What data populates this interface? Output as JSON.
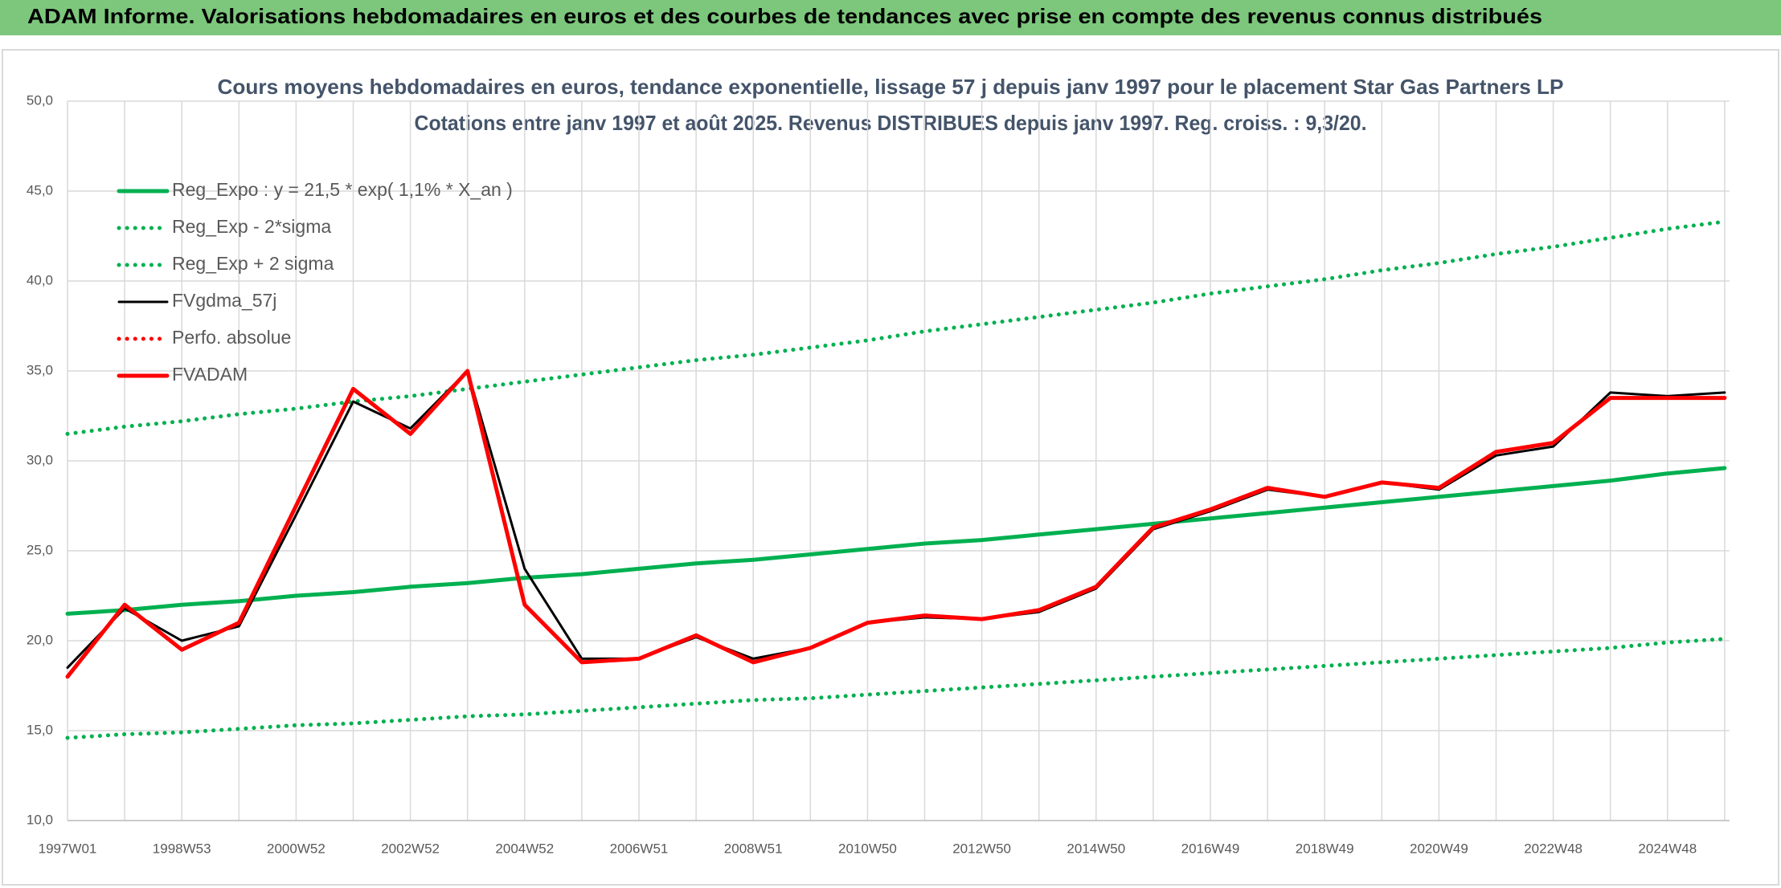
{
  "header": {
    "title": "ADAM Informe. Valorisations hebdomadaires en euros et des courbes de tendances avec prise en compte des revenus connus distribués"
  },
  "chart_data": {
    "type": "line",
    "title": "Cours moyens hebdomadaires en euros, tendance exponentielle, lissage 57 j depuis janv 1997 pour le placement Star Gas Partners LP",
    "subtitle": "Cotations entre janv 1997 et août 2025. Revenus DISTRIBUES depuis janv 1997. Reg. croiss. : 9,3/20.",
    "categories": [
      "1997W01",
      null,
      "1998W53",
      null,
      "2000W52",
      null,
      "2002W52",
      null,
      "2004W52",
      null,
      "2006W51",
      null,
      "2008W51",
      null,
      "2010W50",
      null,
      "2012W50",
      null,
      "2014W50",
      null,
      "2016W49",
      null,
      "2018W49",
      null,
      "2020W49",
      null,
      "2022W48",
      null,
      "2024W48",
      null
    ],
    "ylim": [
      10,
      50
    ],
    "yticks": [
      {
        "value": 10,
        "label": "10,0"
      },
      {
        "value": 15,
        "label": "15,0"
      },
      {
        "value": 20,
        "label": "20,0"
      },
      {
        "value": 25,
        "label": "25,0"
      },
      {
        "value": 30,
        "label": "30,0"
      },
      {
        "value": 35,
        "label": "35,0"
      },
      {
        "value": 40,
        "label": "40,0"
      },
      {
        "value": 45,
        "label": "45,0"
      },
      {
        "value": 50,
        "label": "50,0"
      }
    ],
    "grid": true,
    "legend": "upper left",
    "series": [
      {
        "name": "Reg_Expo : y = 21,5 * exp( 1,1% *  X_an )",
        "color": "#00b050",
        "linestyle": "solid",
        "values": [
          21.5,
          21.7,
          22.0,
          22.2,
          22.5,
          22.7,
          23.0,
          23.2,
          23.5,
          23.7,
          24.0,
          24.3,
          24.5,
          24.8,
          25.1,
          25.4,
          25.6,
          25.9,
          26.2,
          26.5,
          26.8,
          27.1,
          27.4,
          27.7,
          28.0,
          28.3,
          28.6,
          28.9,
          29.3,
          29.6
        ]
      },
      {
        "name": "Reg_Exp - 2*sigma",
        "color": "#00b050",
        "linestyle": "dotted",
        "values": [
          14.6,
          14.8,
          14.9,
          15.1,
          15.3,
          15.4,
          15.6,
          15.8,
          15.9,
          16.1,
          16.3,
          16.5,
          16.7,
          16.8,
          17.0,
          17.2,
          17.4,
          17.6,
          17.8,
          18.0,
          18.2,
          18.4,
          18.6,
          18.8,
          19.0,
          19.2,
          19.4,
          19.6,
          19.9,
          20.1
        ]
      },
      {
        "name": "Reg_Exp + 2 sigma",
        "color": "#00b050",
        "linestyle": "dotted",
        "values": [
          31.5,
          31.9,
          32.2,
          32.6,
          32.9,
          33.3,
          33.6,
          34.0,
          34.4,
          34.8,
          35.2,
          35.6,
          35.9,
          36.3,
          36.7,
          37.2,
          37.6,
          38.0,
          38.4,
          38.8,
          39.3,
          39.7,
          40.1,
          40.6,
          41.0,
          41.5,
          41.9,
          42.4,
          42.9,
          43.3
        ]
      },
      {
        "name": "FVgdma_57j",
        "color": "#000000",
        "linestyle": "solid",
        "values": [
          18.5,
          21.8,
          20.0,
          20.8,
          27.0,
          33.3,
          31.8,
          35.0,
          24.0,
          19.0,
          19.0,
          20.2,
          19.0,
          19.6,
          21.0,
          21.3,
          21.2,
          21.6,
          22.9,
          26.2,
          27.2,
          28.4,
          28.0,
          28.8,
          28.4,
          30.3,
          30.8,
          33.8,
          33.6,
          33.8
        ]
      },
      {
        "name": "Perfo. absolue",
        "color": "#ff0000",
        "linestyle": "dotted",
        "values": [
          null,
          null,
          null,
          null,
          null,
          null,
          null,
          null,
          null,
          null,
          null,
          null,
          null,
          null,
          null,
          null,
          null,
          null,
          null,
          null,
          null,
          null,
          null,
          null,
          null,
          null,
          null,
          null,
          null,
          null
        ]
      },
      {
        "name": "FVADAM",
        "color": "#ff0000",
        "linestyle": "solid",
        "values": [
          18.0,
          22.0,
          19.5,
          21.0,
          27.5,
          34.0,
          31.5,
          35.0,
          22.0,
          18.8,
          19.0,
          20.3,
          18.8,
          19.6,
          21.0,
          21.4,
          21.2,
          21.7,
          23.0,
          26.3,
          27.3,
          28.5,
          28.0,
          28.8,
          28.5,
          30.5,
          31.0,
          33.5,
          33.5,
          33.5
        ]
      }
    ]
  }
}
